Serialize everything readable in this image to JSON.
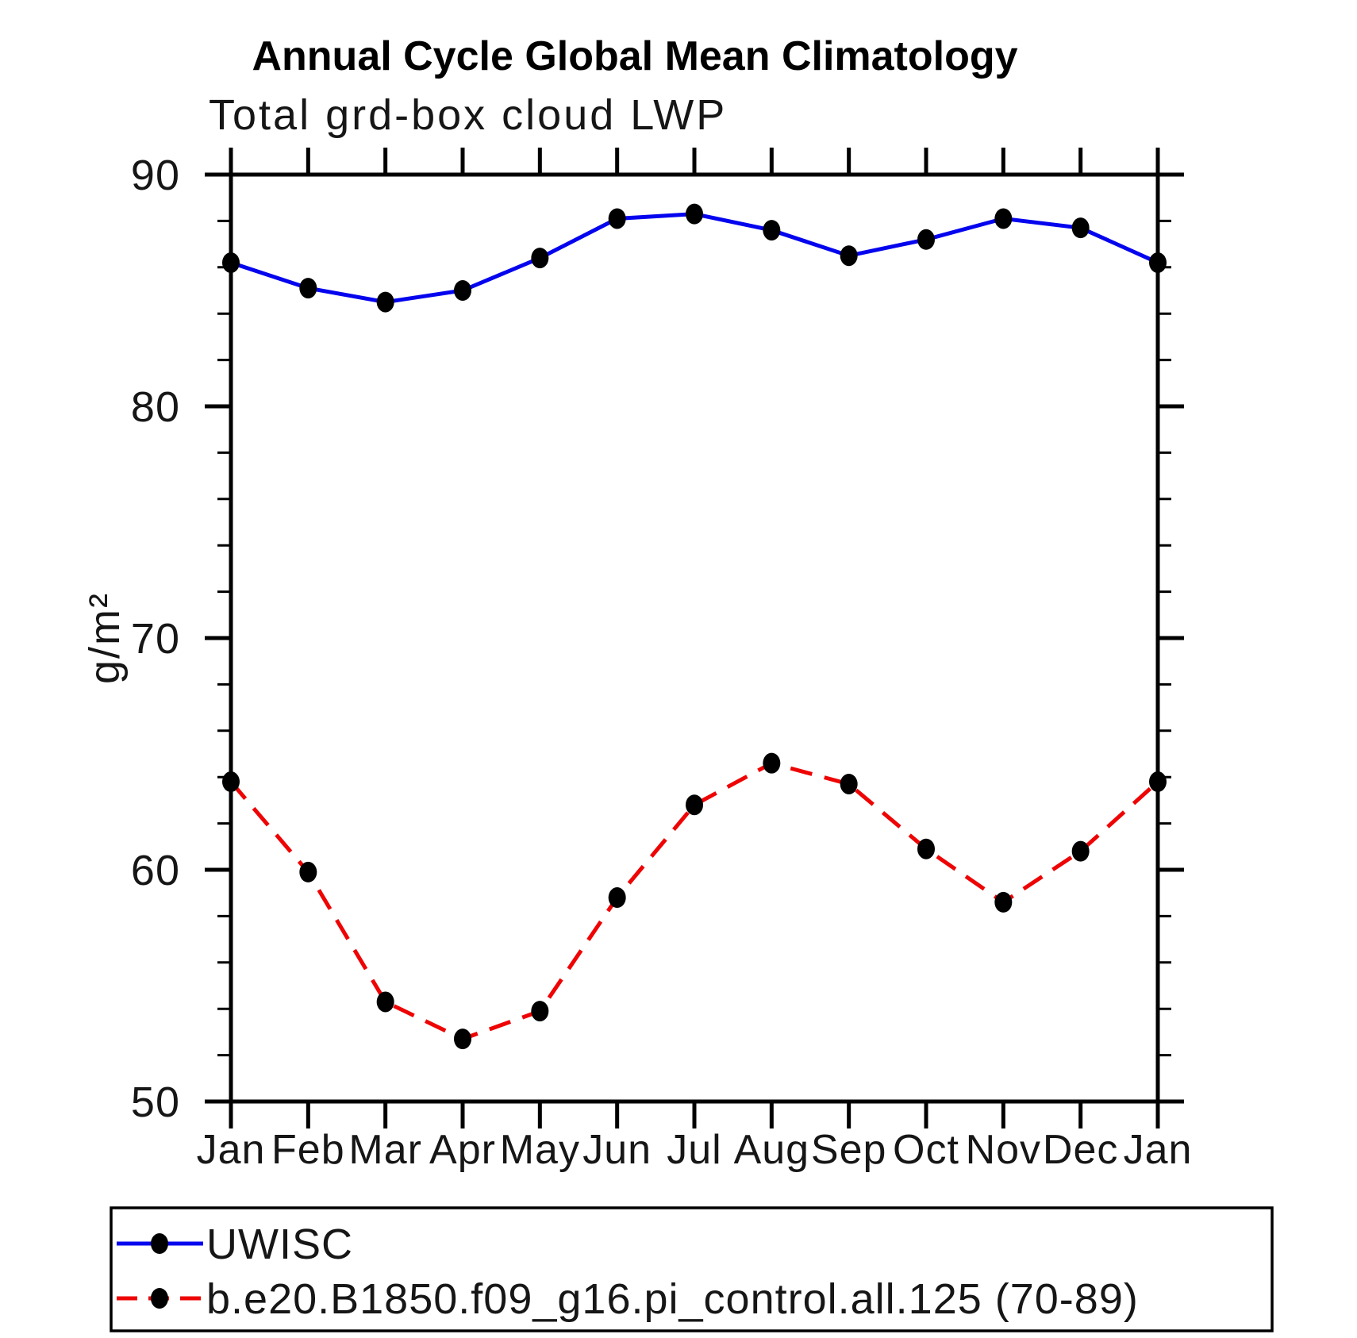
{
  "page": {
    "title": "Annual Cycle Global Mean Climatology",
    "subtitle": "Total grd-box cloud LWP",
    "ylabel_display": "g/m²"
  },
  "chart_data": {
    "type": "line",
    "title": "Annual Cycle Global Mean Climatology",
    "subtitle": "Total grd-box cloud LWP",
    "xlabel": "",
    "ylabel": "g/m²",
    "categories": [
      "Jan",
      "Feb",
      "Mar",
      "Apr",
      "May",
      "Jun",
      "Jul",
      "Aug",
      "Sep",
      "Oct",
      "Nov",
      "Dec",
      "Jan"
    ],
    "ylim": [
      50,
      90
    ],
    "yticks_major": [
      50,
      60,
      70,
      80,
      90
    ],
    "ytick_minor_step": 2,
    "grid": false,
    "legend_position": "bottom-left-box",
    "marker": "filled-black-dot",
    "marker_color": "#000000",
    "axis_color": "#000000",
    "series": [
      {
        "name": "UWISC",
        "color": "#0404ee",
        "line_style": "solid",
        "values": [
          86.2,
          85.1,
          84.5,
          85.0,
          86.4,
          88.1,
          88.3,
          87.6,
          86.5,
          87.2,
          88.1,
          87.7,
          86.2
        ]
      },
      {
        "name": "b.e20.B1850.f09_g16.pi_control.all.125 (70-89)",
        "color": "#ee0404",
        "line_style": "dashed",
        "values": [
          63.8,
          59.9,
          54.3,
          52.7,
          53.9,
          58.8,
          62.8,
          64.6,
          63.7,
          60.9,
          58.6,
          60.8,
          63.8
        ]
      }
    ]
  }
}
